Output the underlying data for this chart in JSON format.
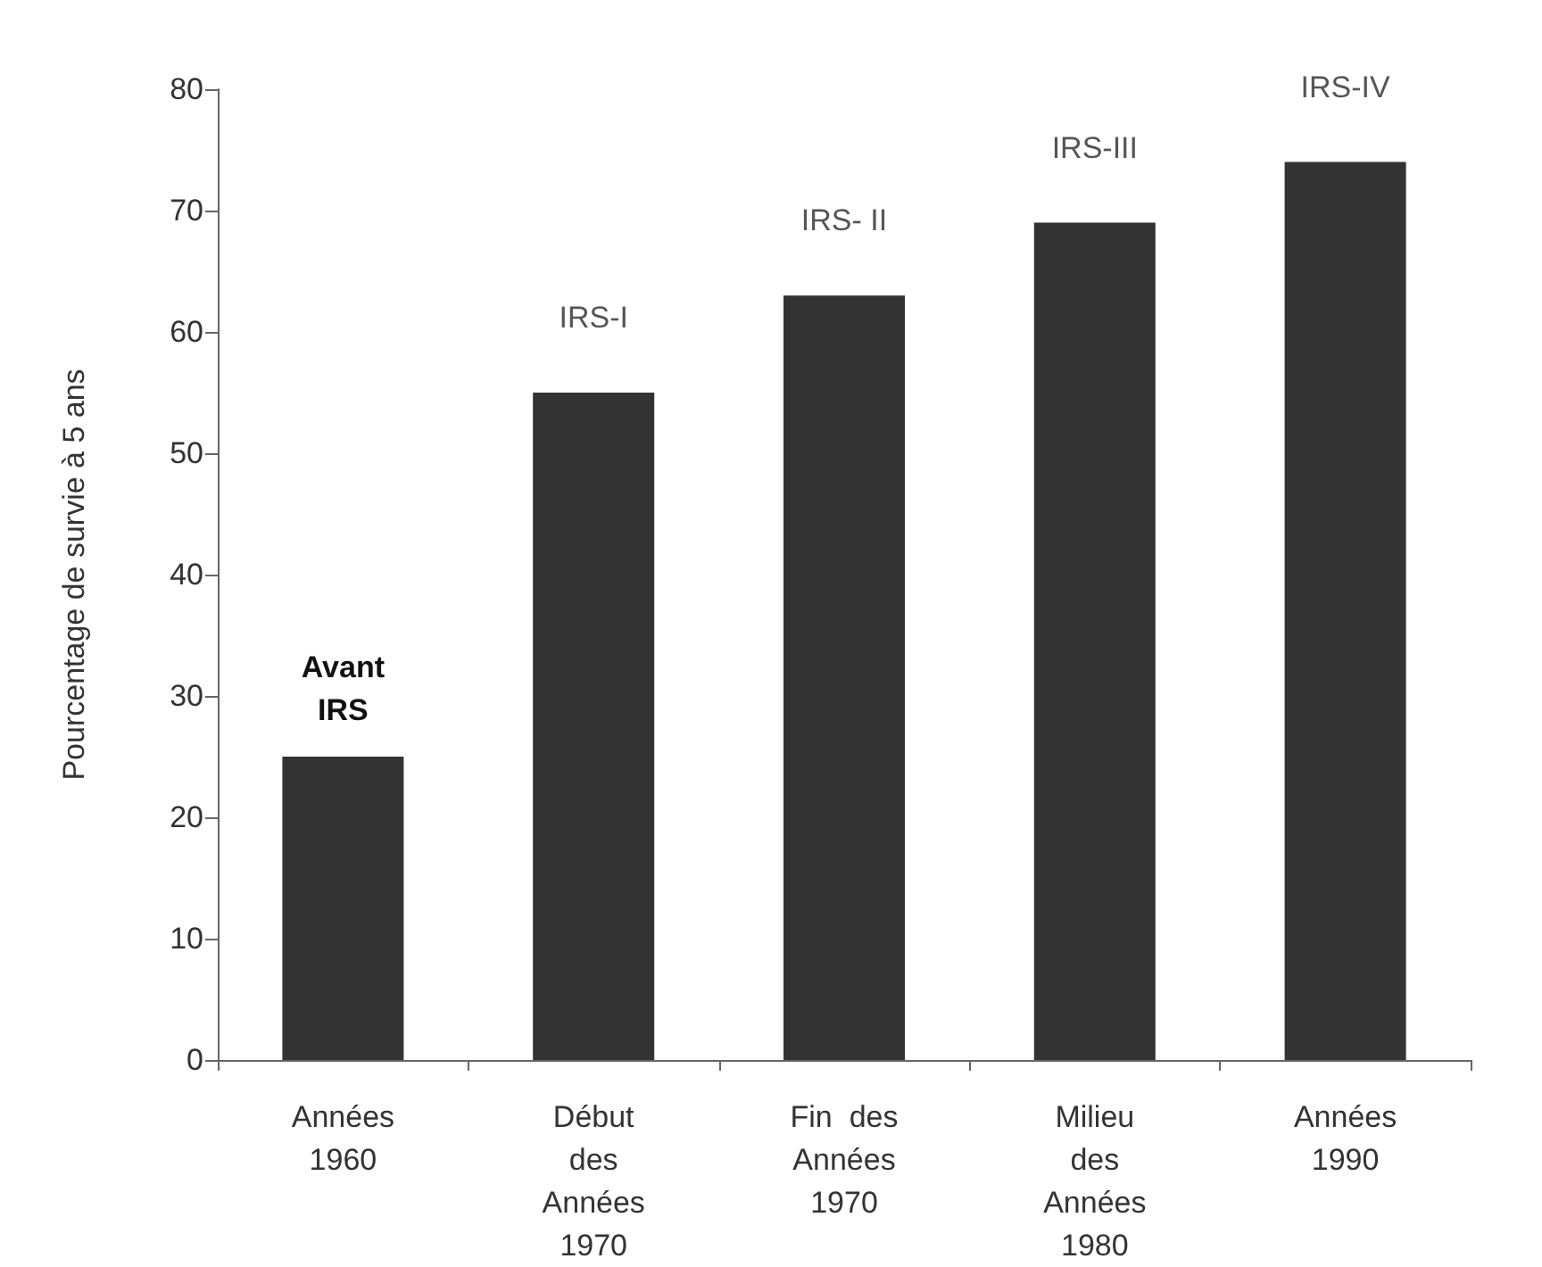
{
  "chart_data": {
    "type": "bar",
    "categories": [
      "Années\n1960",
      "Début\ndes\nAnnées\n1970",
      "Fin  des\nAnnées\n1970",
      "Milieu\ndes\nAnnées\n1980",
      "Années\n1990"
    ],
    "values": [
      25,
      55,
      63,
      69,
      74
    ],
    "color": "#333333",
    "ylabel": "Pourcentage de survie à 5 ans",
    "ylim": [
      0,
      80
    ],
    "yticks": [
      0,
      10,
      20,
      30,
      40,
      50,
      60,
      70,
      80
    ],
    "grid": false,
    "annotations": [
      {
        "text": "Avant\nIRS",
        "x": "Années\n1960",
        "y": 25
      },
      {
        "text": "IRS-I",
        "x": "Début\ndes\nAnnées\n1970",
        "y": 55
      },
      {
        "text": "IRS- II",
        "x": "Fin  des\nAnnées\n1970",
        "y": 63
      },
      {
        "text": "IRS-III",
        "x": "Milieu\ndes\nAnnées\n1980",
        "y": 69
      },
      {
        "text": "IRS-IV",
        "x": "Années\n1990",
        "y": 74
      }
    ]
  }
}
